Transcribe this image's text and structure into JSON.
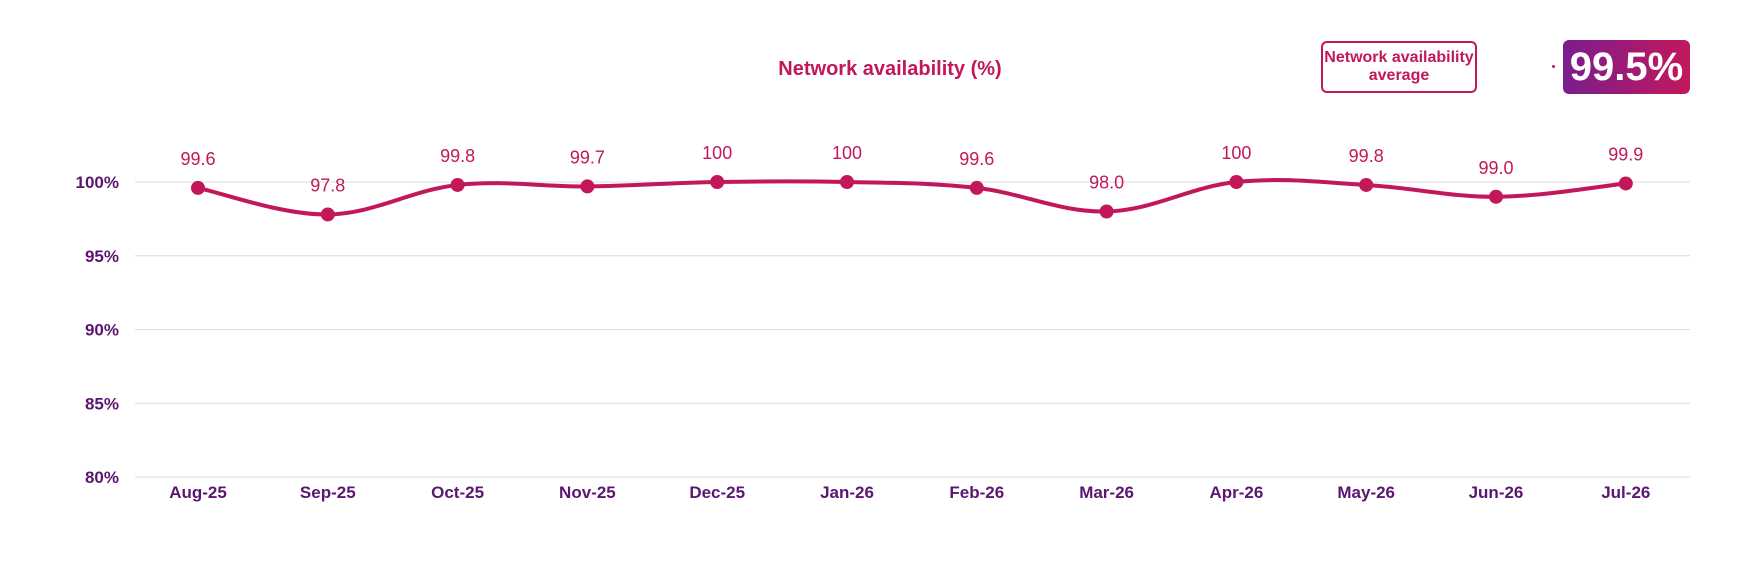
{
  "chart_data": {
    "type": "line",
    "title": "Network availability (%)",
    "categories": [
      "Aug-25",
      "Sep-25",
      "Oct-25",
      "Nov-25",
      "Dec-25",
      "Jan-26",
      "Feb-26",
      "Mar-26",
      "Apr-26",
      "May-26",
      "Jun-26",
      "Jul-26"
    ],
    "values": [
      99.6,
      97.8,
      99.8,
      99.7,
      100,
      100,
      99.6,
      98.0,
      100,
      99.8,
      99.0,
      99.9
    ],
    "data_labels": [
      "99.6",
      "97.8",
      "99.8",
      "99.7",
      "100",
      "100",
      "99.6",
      "98.0",
      "100",
      "99.8",
      "99.0",
      "99.9"
    ],
    "y_ticks": [
      {
        "value": 80,
        "label": "80%"
      },
      {
        "value": 85,
        "label": "85%"
      },
      {
        "value": 90,
        "label": "90%"
      },
      {
        "value": 95,
        "label": "95%"
      },
      {
        "value": 100,
        "label": "100%"
      }
    ],
    "ylim": [
      80,
      100
    ],
    "grid": true,
    "color": "#c2185b"
  },
  "summary": {
    "label": "Network availability average",
    "value": "99.5%"
  },
  "colors": {
    "accent": "#c2185b",
    "axis_text": "#5b1672",
    "gradient_start": "#7b1d8e"
  }
}
